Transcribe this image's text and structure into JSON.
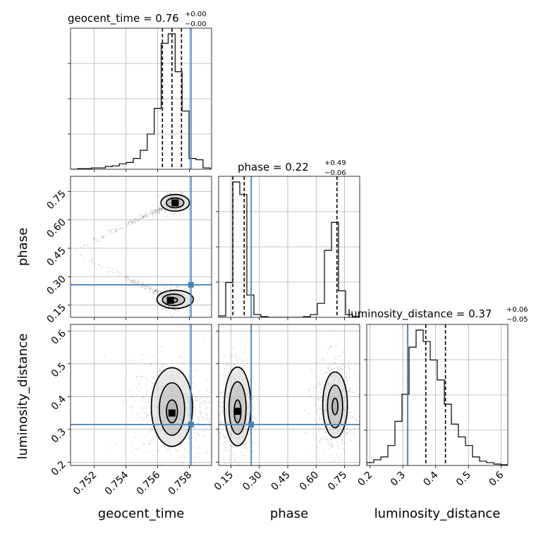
{
  "chart_data": {
    "type": "corner",
    "parameters": [
      {
        "key": "geocent_time",
        "label": "geocent_time",
        "range": [
          0.7505,
          0.7594
        ],
        "ticks": [
          0.752,
          0.754,
          0.756,
          0.758
        ],
        "tick_labels": [
          "0.752",
          "0.754",
          "0.756",
          "0.758"
        ],
        "truth": 0.7581,
        "quantiles": [
          0.7563,
          0.7569,
          0.7575
        ],
        "title_median": "0.76",
        "title_plus": "+0.00",
        "title_minus": "−0.00",
        "hist": {
          "edges": [
            0.7505,
            0.75094,
            0.75138,
            0.75182,
            0.75226,
            0.7527,
            0.75314,
            0.75358,
            0.75402,
            0.75446,
            0.7549,
            0.75534,
            0.75578,
            0.75622,
            0.75666,
            0.7571,
            0.75754,
            0.75798,
            0.75842,
            0.75886,
            0.7593
          ],
          "counts": [
            0.0,
            0.005,
            0.005,
            0.01,
            0.01,
            0.02,
            0.025,
            0.04,
            0.05,
            0.08,
            0.14,
            0.26,
            0.45,
            0.93,
            1.0,
            0.72,
            0.43,
            0.08,
            0.07,
            0.01
          ]
        }
      },
      {
        "key": "phase",
        "label": "phase",
        "range": [
          0.085,
          0.83
        ],
        "ticks": [
          0.15,
          0.3,
          0.45,
          0.6,
          0.75
        ],
        "tick_labels": [
          "0.15",
          "0.30",
          "0.45",
          "0.60",
          "0.75"
        ],
        "truth": 0.257,
        "quantiles": [
          0.16,
          0.22,
          0.71
        ],
        "title_median": "0.22",
        "title_plus": "+0.49",
        "title_minus": "−0.06",
        "hist": {
          "edges": [
            0.085,
            0.1223,
            0.1595,
            0.1968,
            0.234,
            0.2712,
            0.3085,
            0.3458,
            0.383,
            0.4203,
            0.4575,
            0.4948,
            0.532,
            0.5693,
            0.6065,
            0.6438,
            0.681,
            0.7183,
            0.7555,
            0.7928,
            0.83
          ],
          "counts": [
            0.01,
            0.25,
            0.97,
            0.88,
            0.16,
            0.02,
            0.005,
            0.0,
            0.0,
            0.0,
            0.0,
            0.0,
            0.005,
            0.02,
            0.1,
            0.48,
            0.68,
            0.19,
            0.02,
            0.005
          ]
        }
      },
      {
        "key": "luminosity_distance",
        "label": "luminosity_distance",
        "range": [
          0.19,
          0.62
        ],
        "ticks": [
          0.2,
          0.3,
          0.4,
          0.5,
          0.6
        ],
        "tick_labels": [
          "0.2",
          "0.3",
          "0.4",
          "0.5",
          "0.6"
        ],
        "truth": 0.315,
        "quantiles": [
          0.315,
          0.37,
          0.43
        ],
        "title_median": "0.37",
        "title_plus": "+0.06",
        "title_minus": "−0.05",
        "hist": {
          "edges": [
            0.19,
            0.2115,
            0.233,
            0.2545,
            0.276,
            0.2975,
            0.319,
            0.3405,
            0.362,
            0.3835,
            0.405,
            0.4265,
            0.448,
            0.4695,
            0.491,
            0.5125,
            0.534,
            0.5555,
            0.577,
            0.5985,
            0.62
          ],
          "counts": [
            0.02,
            0.04,
            0.06,
            0.14,
            0.31,
            0.5,
            0.83,
            0.95,
            0.87,
            0.74,
            0.6,
            0.43,
            0.29,
            0.2,
            0.14,
            0.06,
            0.03,
            0.02,
            0.01,
            0.005
          ]
        }
      }
    ],
    "scatter_panels": [
      {
        "x": "geocent_time",
        "y": "phase",
        "blobs": [
          {
            "cx": 0.757,
            "cy": 0.175,
            "sx": 0.00025,
            "sy": 0.022
          },
          {
            "cx": 0.757,
            "cy": 0.69,
            "sx": 0.00025,
            "sy": 0.018
          }
        ],
        "contours": [
          {
            "cx": 0.757,
            "cy": 0.176,
            "rx": 0.00025,
            "ry": 0.012
          },
          {
            "cx": 0.757,
            "cy": 0.178,
            "rx": 0.0007,
            "ry": 0.03
          },
          {
            "cx": 0.7571,
            "cy": 0.18,
            "rx": 0.00115,
            "ry": 0.048
          },
          {
            "cx": 0.7571,
            "cy": 0.69,
            "rx": 0.0002,
            "ry": 0.01
          },
          {
            "cx": 0.7571,
            "cy": 0.69,
            "rx": 0.00055,
            "ry": 0.026
          },
          {
            "cx": 0.7571,
            "cy": 0.69,
            "rx": 0.0009,
            "ry": 0.044
          }
        ],
        "peaks": [
          {
            "cx": 0.7568,
            "cy": 0.175
          },
          {
            "cx": 0.7571,
            "cy": 0.69
          }
        ]
      },
      {
        "x": "geocent_time",
        "y": "luminosity_distance",
        "blobs": [
          {
            "cx": 0.7569,
            "cy": 0.36,
            "sx": 0.0009,
            "sy": 0.055
          }
        ],
        "contours": [
          {
            "cx": 0.7569,
            "cy": 0.355,
            "rx": 0.00035,
            "ry": 0.035
          },
          {
            "cx": 0.7569,
            "cy": 0.362,
            "rx": 0.0008,
            "ry": 0.08
          },
          {
            "cx": 0.7569,
            "cy": 0.368,
            "rx": 0.0013,
            "ry": 0.12
          }
        ],
        "peaks": [
          {
            "cx": 0.7569,
            "cy": 0.35
          }
        ]
      },
      {
        "x": "phase",
        "y": "luminosity_distance",
        "blobs": [
          {
            "cx": 0.185,
            "cy": 0.36,
            "sx": 0.035,
            "sy": 0.055
          },
          {
            "cx": 0.7,
            "cy": 0.37,
            "sx": 0.04,
            "sy": 0.05
          }
        ],
        "contours": [
          {
            "cx": 0.185,
            "cy": 0.355,
            "rx": 0.018,
            "ry": 0.035
          },
          {
            "cx": 0.185,
            "cy": 0.365,
            "rx": 0.045,
            "ry": 0.08
          },
          {
            "cx": 0.185,
            "cy": 0.37,
            "rx": 0.07,
            "ry": 0.12
          },
          {
            "cx": 0.7,
            "cy": 0.37,
            "rx": 0.015,
            "ry": 0.025
          },
          {
            "cx": 0.7,
            "cy": 0.37,
            "rx": 0.04,
            "ry": 0.065
          },
          {
            "cx": 0.7,
            "cy": 0.375,
            "rx": 0.065,
            "ry": 0.1
          }
        ],
        "peaks": [
          {
            "cx": 0.185,
            "cy": 0.355
          }
        ]
      }
    ],
    "grid": true,
    "colors": {
      "truth": "#4682b4",
      "hist": "#000000",
      "scatter": "#000000"
    }
  }
}
